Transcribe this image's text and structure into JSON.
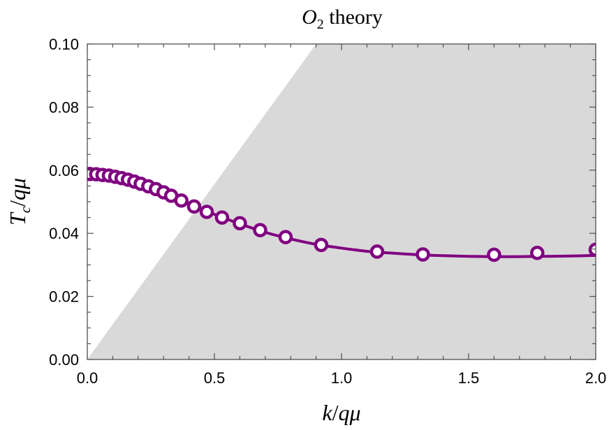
{
  "chart_data": {
    "type": "scatter",
    "title": {
      "main": "O",
      "sub": "2",
      "rest": " theory"
    },
    "xlabel": {
      "k": "k",
      "slash": "/",
      "q": "q",
      "mu": "μ"
    },
    "ylabel": {
      "T": "T",
      "sub": "c",
      "slash": "/",
      "q": "q",
      "mu": "μ"
    },
    "xlim": [
      0.0,
      2.0
    ],
    "ylim": [
      0.0,
      0.1
    ],
    "x_ticks": [
      "0.0",
      "0.5",
      "1.0",
      "1.5",
      "2.0"
    ],
    "y_ticks": [
      "0.00",
      "0.02",
      "0.04",
      "0.06",
      "0.08",
      "0.10"
    ],
    "x_tick_values": [
      0.0,
      0.5,
      1.0,
      1.5,
      2.0
    ],
    "y_tick_values": [
      0.0,
      0.02,
      0.04,
      0.06,
      0.08,
      0.1
    ],
    "grid": false,
    "shaded_region": {
      "description": "right of line T = k/9 (upper boundary from (0,0) to (0.9,0.1))",
      "line": [
        [
          0.0,
          0.0
        ],
        [
          0.9,
          0.1
        ]
      ],
      "color": "#d9d9d9"
    },
    "points": {
      "color": "#800080",
      "x": [
        0.01,
        0.035,
        0.06,
        0.085,
        0.11,
        0.135,
        0.16,
        0.185,
        0.21,
        0.24,
        0.27,
        0.3,
        0.33,
        0.37,
        0.42,
        0.47,
        0.53,
        0.6,
        0.68,
        0.78,
        0.92,
        1.14,
        1.32,
        1.6,
        1.77,
        2.0
      ],
      "y": [
        0.0588,
        0.0587,
        0.0585,
        0.0583,
        0.0579,
        0.0575,
        0.057,
        0.0564,
        0.0557,
        0.0549,
        0.054,
        0.053,
        0.0519,
        0.0504,
        0.0485,
        0.0468,
        0.045,
        0.0432,
        0.041,
        0.0388,
        0.0363,
        0.0342,
        0.0333,
        0.0332,
        0.0338,
        0.0348
      ]
    },
    "fit_curve": {
      "color": "#800080",
      "x": [
        0.0,
        0.1,
        0.2,
        0.3,
        0.4,
        0.5,
        0.6,
        0.7,
        0.8,
        0.9,
        1.0,
        1.1,
        1.2,
        1.3,
        1.4,
        1.5,
        1.6,
        1.7,
        1.8,
        1.9,
        2.0
      ],
      "y": [
        0.0588,
        0.058,
        0.056,
        0.053,
        0.0495,
        0.046,
        0.043,
        0.0403,
        0.0382,
        0.0365,
        0.0353,
        0.0343,
        0.0337,
        0.0332,
        0.0329,
        0.0327,
        0.0326,
        0.0326,
        0.0327,
        0.0328,
        0.033
      ]
    }
  }
}
